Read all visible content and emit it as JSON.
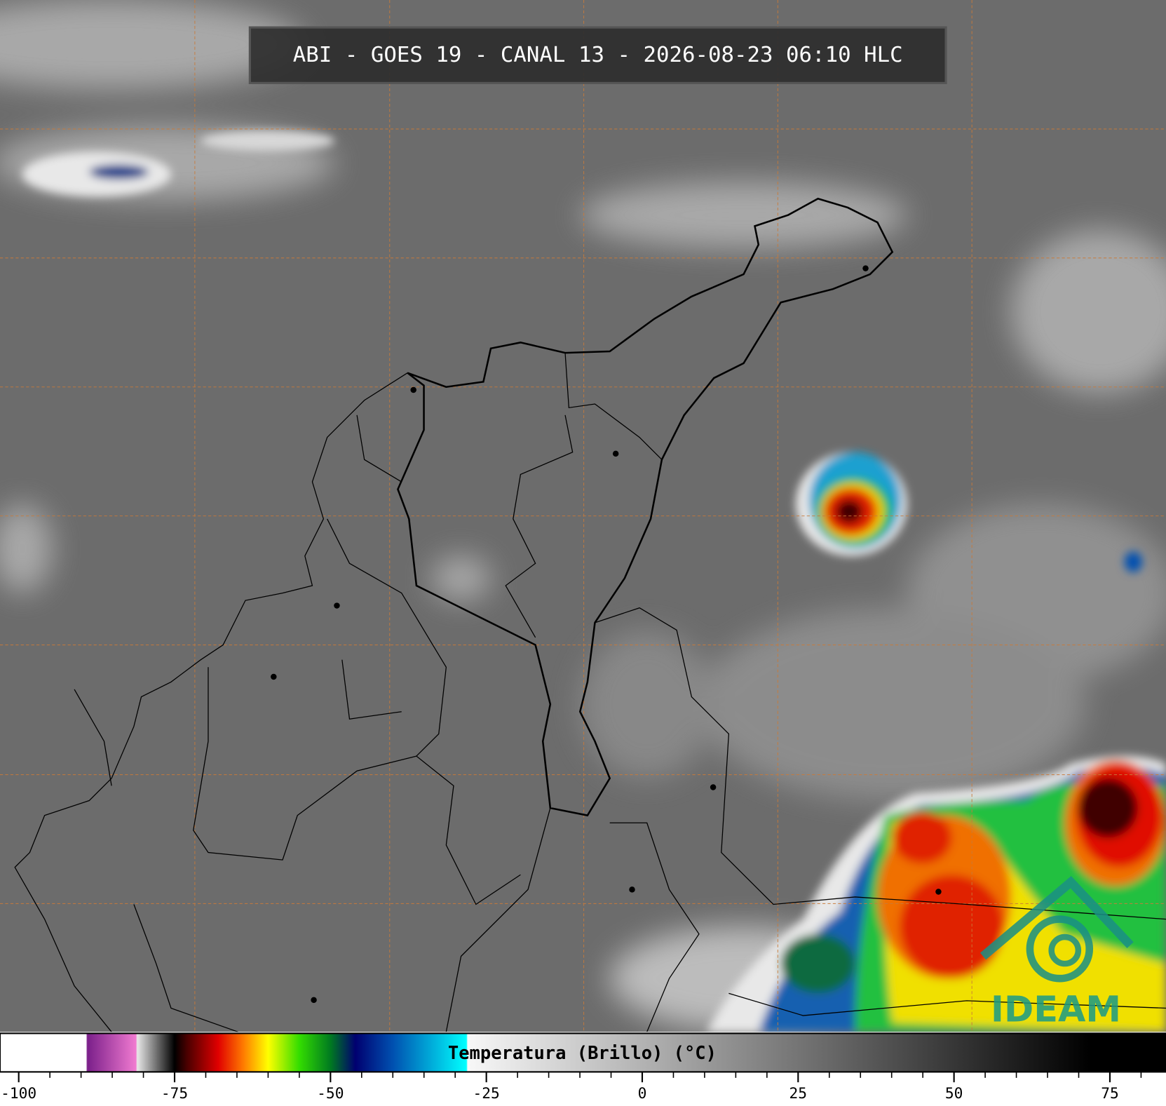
{
  "title": "ABI - GOES 19 - CANAL 13 - 2026-08-23 06:10 HLC",
  "brand": "IDEAM",
  "colorbar": {
    "label": "Temperatura (Brillo) (°C)",
    "range": [
      -103,
      84
    ],
    "ticks": [
      -100,
      -75,
      -50,
      -25,
      0,
      25,
      50,
      75
    ],
    "minor_step": 5,
    "stops": [
      {
        "value": -103,
        "color": "#ffffff"
      },
      {
        "value": -89.2,
        "color": "#ffffff"
      },
      {
        "value": -89,
        "color": "#7a1f8a"
      },
      {
        "value": -81.2,
        "color": "#f07ad0"
      },
      {
        "value": -81,
        "color": "#e8e8e8"
      },
      {
        "value": -75,
        "color": "#000000"
      },
      {
        "value": -73,
        "color": "#4a0000"
      },
      {
        "value": -68,
        "color": "#e00000"
      },
      {
        "value": -64,
        "color": "#ff7a00"
      },
      {
        "value": -60,
        "color": "#ffff00"
      },
      {
        "value": -55,
        "color": "#33dd00"
      },
      {
        "value": -50,
        "color": "#007a20"
      },
      {
        "value": -46,
        "color": "#000070"
      },
      {
        "value": -40,
        "color": "#0050b0"
      },
      {
        "value": -28.2,
        "color": "#00ffff"
      },
      {
        "value": -28,
        "color": "#f8f8f8"
      },
      {
        "value": 72,
        "color": "#000000"
      },
      {
        "value": 84,
        "color": "#000000"
      }
    ]
  }
}
